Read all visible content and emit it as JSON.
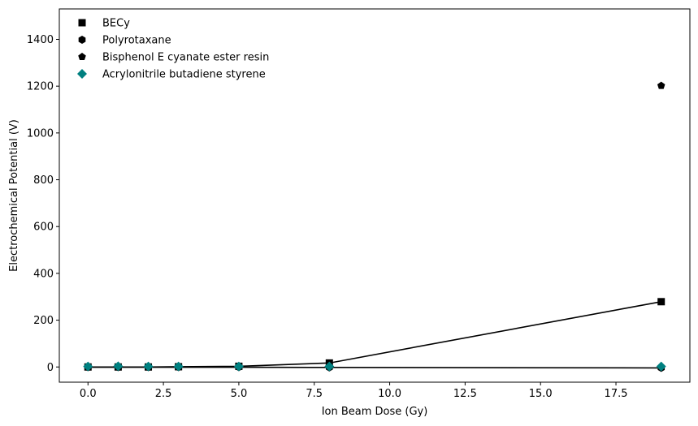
{
  "chart_data": {
    "type": "line",
    "xlabel": "Ion Beam Dose (Gy)",
    "ylabel": "Electrochemical Potential (V)",
    "xlim": [
      -0.95,
      19.95
    ],
    "ylim": [
      -65,
      1530
    ],
    "xticks": [
      0.0,
      2.5,
      5.0,
      7.5,
      10.0,
      12.5,
      15.0,
      17.5
    ],
    "xtick_labels": [
      "0.0",
      "2.5",
      "5.0",
      "7.5",
      "10.0",
      "12.5",
      "15.0",
      "17.5"
    ],
    "yticks": [
      0,
      200,
      400,
      600,
      800,
      1000,
      1200,
      1400
    ],
    "ytick_labels": [
      "0",
      "200",
      "400",
      "600",
      "800",
      "1000",
      "1200",
      "1400"
    ],
    "grid": false,
    "legend_position": "top-left",
    "series": [
      {
        "name": "BECy",
        "marker": "square",
        "color": "#000000",
        "line": true,
        "x": [
          0,
          1,
          2,
          3,
          5,
          8,
          19
        ],
        "y": [
          0,
          0,
          0,
          1,
          3,
          17,
          279
        ]
      },
      {
        "name": "Polyrotaxane",
        "marker": "hexagon",
        "color": "#000000",
        "line": true,
        "x": [
          0,
          1,
          2,
          3,
          5,
          8,
          19
        ],
        "y": [
          -1,
          -1,
          -1,
          -1,
          -1,
          -2,
          -4
        ]
      },
      {
        "name": "Bisphenol E cyanate ester resin",
        "marker": "pentagon",
        "color": "#000000",
        "line": false,
        "x": [
          19
        ],
        "y": [
          1202
        ]
      },
      {
        "name": "Acrylonitrile butadiene styrene",
        "marker": "diamond",
        "color": "#008080",
        "line": false,
        "x": [
          0,
          1,
          2,
          3,
          5,
          8,
          19
        ],
        "y": [
          2,
          3,
          2,
          2,
          2,
          2,
          2
        ]
      }
    ]
  }
}
